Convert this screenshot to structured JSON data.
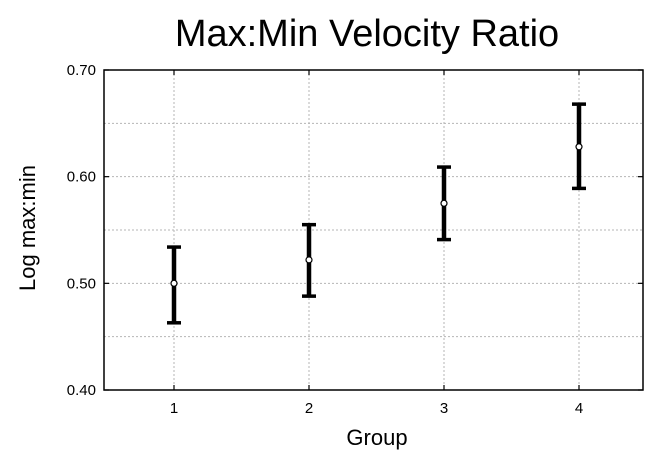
{
  "chart_data": {
    "type": "scatter",
    "title": "Max:Min Velocity Ratio",
    "xlabel": "Group",
    "ylabel": "Log max:min",
    "categories": [
      "1",
      "2",
      "3",
      "4"
    ],
    "points": [
      {
        "x": "1",
        "y": 0.5,
        "lower": 0.463,
        "upper": 0.534
      },
      {
        "x": "2",
        "y": 0.522,
        "lower": 0.488,
        "upper": 0.555
      },
      {
        "x": "3",
        "y": 0.575,
        "lower": 0.541,
        "upper": 0.609
      },
      {
        "x": "4",
        "y": 0.628,
        "lower": 0.589,
        "upper": 0.668
      }
    ],
    "ylim": [
      0.4,
      0.7
    ],
    "yticks": [
      0.4,
      0.5,
      0.6,
      0.7
    ],
    "ytick_labels": [
      "0.40",
      "0.50",
      "0.60",
      "0.70"
    ],
    "ygrid": [
      0.45,
      0.5,
      0.55,
      0.6,
      0.65
    ],
    "grid": true,
    "legend": "none"
  }
}
